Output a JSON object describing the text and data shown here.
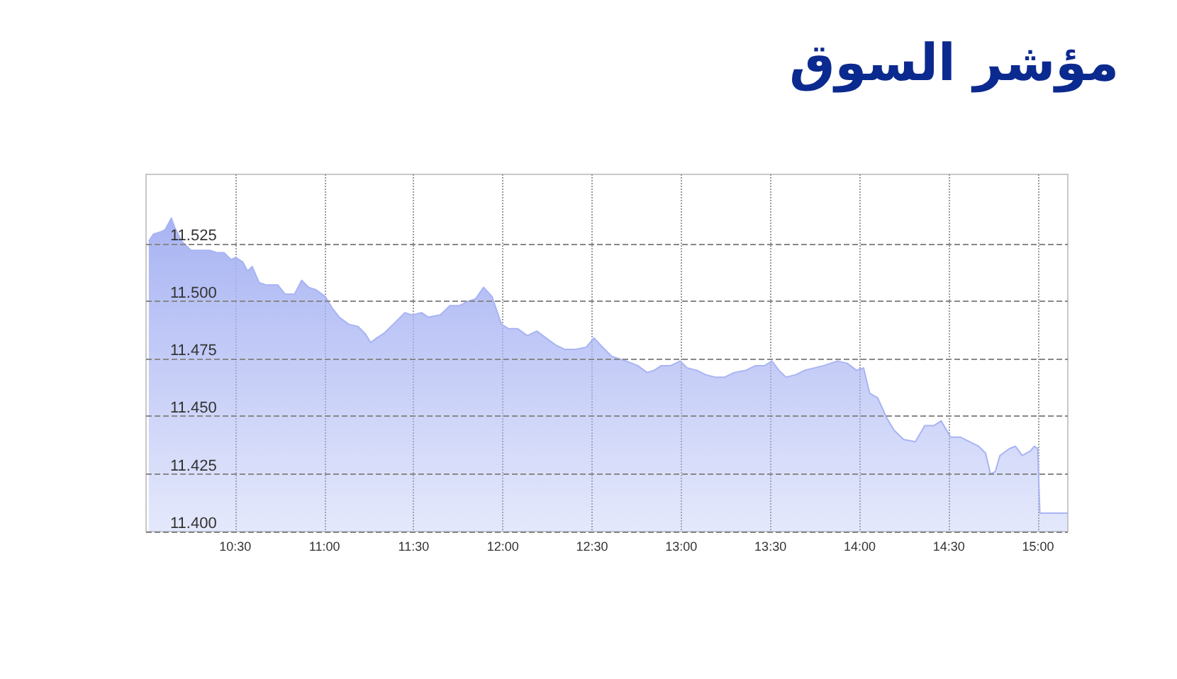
{
  "chart_data": {
    "type": "area",
    "title": "مؤشر السوق",
    "x": [
      10.015,
      10.041,
      10.081,
      10.107,
      10.142,
      10.16,
      10.199,
      10.252,
      10.304,
      10.357,
      10.397,
      10.437,
      10.476,
      10.502,
      10.542,
      10.569,
      10.595,
      10.634,
      10.674,
      10.739,
      10.779,
      10.832,
      10.872,
      10.911,
      10.951,
      11.004,
      11.043,
      11.083,
      11.135,
      11.188,
      11.227,
      11.259,
      11.293,
      11.333,
      11.386,
      11.451,
      11.491,
      11.544,
      11.583,
      11.649,
      11.702,
      11.755,
      11.807,
      11.847,
      11.892,
      11.939,
      11.992,
      12.032,
      12.084,
      12.137,
      12.19,
      12.242,
      12.295,
      12.348,
      12.4,
      12.467,
      12.511,
      12.559,
      12.611,
      12.691,
      12.756,
      12.809,
      12.849,
      12.888,
      12.941,
      12.994,
      13.033,
      13.086,
      13.139,
      13.191,
      13.244,
      13.297,
      13.363,
      13.416,
      13.468,
      13.508,
      13.547,
      13.587,
      13.64,
      13.693,
      13.745,
      13.798,
      13.837,
      13.877,
      13.93,
      13.982,
      14.022,
      14.056,
      14.101,
      14.154,
      14.193,
      14.246,
      14.312,
      14.365,
      14.417,
      14.457,
      14.51,
      14.563,
      14.615,
      14.667,
      14.706,
      14.733,
      14.76,
      14.786,
      14.839,
      14.873,
      14.911,
      14.958,
      14.979,
      14.998,
      15.01,
      15.166
    ],
    "series": [
      {
        "color": "#a8b4f3",
        "values": [
          11.526,
          11.529,
          11.53,
          11.531,
          11.536,
          11.532,
          11.526,
          11.522,
          11.522,
          11.522,
          11.521,
          11.521,
          11.518,
          11.519,
          11.517,
          11.513,
          11.515,
          11.508,
          11.507,
          11.507,
          11.503,
          11.503,
          11.509,
          11.506,
          11.505,
          11.502,
          11.497,
          11.493,
          11.49,
          11.489,
          11.486,
          11.482,
          11.484,
          11.486,
          11.49,
          11.495,
          11.494,
          11.495,
          11.493,
          11.494,
          11.498,
          11.498,
          11.5,
          11.501,
          11.506,
          11.502,
          11.49,
          11.488,
          11.488,
          11.485,
          11.487,
          11.484,
          11.481,
          11.479,
          11.479,
          11.48,
          11.484,
          11.48,
          11.476,
          11.474,
          11.472,
          11.469,
          11.47,
          11.472,
          11.472,
          11.474,
          11.471,
          11.47,
          11.468,
          11.467,
          11.467,
          11.469,
          11.47,
          11.472,
          11.472,
          11.474,
          11.47,
          11.467,
          11.468,
          11.47,
          11.471,
          11.472,
          11.473,
          11.474,
          11.473,
          11.47,
          11.471,
          11.46,
          11.458,
          11.449,
          11.444,
          11.44,
          11.439,
          11.446,
          11.446,
          11.448,
          11.441,
          11.441,
          11.439,
          11.437,
          11.434,
          11.425,
          11.426,
          11.433,
          11.436,
          11.437,
          11.433,
          11.435,
          11.437,
          11.436,
          11.408,
          11.408
        ]
      }
    ],
    "xlim": [
      10,
      15.1667
    ],
    "xticks": [
      {
        "value": 10.5,
        "label": "10:30"
      },
      {
        "value": 11,
        "label": "11:00"
      },
      {
        "value": 11.5,
        "label": "11:30"
      },
      {
        "value": 12,
        "label": "12:00"
      },
      {
        "value": 12.5,
        "label": "12:30"
      },
      {
        "value": 13,
        "label": "13:00"
      },
      {
        "value": 13.5,
        "label": "13:30"
      },
      {
        "value": 14,
        "label": "14:00"
      },
      {
        "value": 14.5,
        "label": "14:30"
      },
      {
        "value": 15,
        "label": "15:00"
      }
    ],
    "ylim": [
      11.4,
      11.555
    ],
    "yticks": [
      {
        "value": 11.4,
        "label": "11.400"
      },
      {
        "value": 11.425,
        "label": "11.425"
      },
      {
        "value": 11.45,
        "label": "11.450"
      },
      {
        "value": 11.475,
        "label": "11.475"
      },
      {
        "value": 11.5,
        "label": "11.500"
      },
      {
        "value": 11.525,
        "label": "11.525"
      }
    ],
    "grid": true
  }
}
